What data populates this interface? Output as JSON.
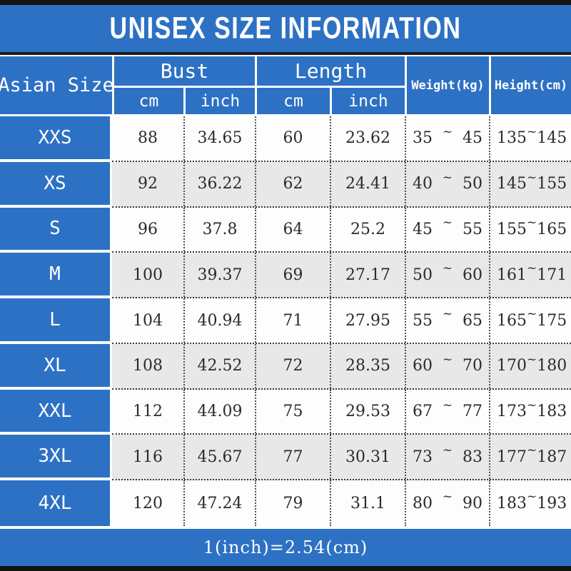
{
  "title": "UNISEX SIZE INFORMATION",
  "footer": "1(inch)=2.54(cm)",
  "colors": {
    "blue": "#2d71c4",
    "bar_black": "#141414",
    "alt_row_gray": "#e8e8e8"
  },
  "table": {
    "header": {
      "asian_size": "Asian Size",
      "bust": "Bust",
      "length": "Length",
      "weight": "Weight(kg)",
      "height": "Height(cm)",
      "cm": "cm",
      "inch": "inch"
    },
    "tilde": "~",
    "rows": [
      {
        "size": "XXS",
        "bust_cm": "88",
        "bust_inch": "34.65",
        "length_cm": "60",
        "length_inch": "23.62",
        "weight_min": "35",
        "weight_max": "45",
        "height_min": "135",
        "height_max": "145"
      },
      {
        "size": "XS",
        "bust_cm": "92",
        "bust_inch": "36.22",
        "length_cm": "62",
        "length_inch": "24.41",
        "weight_min": "40",
        "weight_max": "50",
        "height_min": "145",
        "height_max": "155"
      },
      {
        "size": "S",
        "bust_cm": "96",
        "bust_inch": "37.8",
        "length_cm": "64",
        "length_inch": "25.2",
        "weight_min": "45",
        "weight_max": "55",
        "height_min": "155",
        "height_max": "165"
      },
      {
        "size": "M",
        "bust_cm": "100",
        "bust_inch": "39.37",
        "length_cm": "69",
        "length_inch": "27.17",
        "weight_min": "50",
        "weight_max": "60",
        "height_min": "161",
        "height_max": "171"
      },
      {
        "size": "L",
        "bust_cm": "104",
        "bust_inch": "40.94",
        "length_cm": "71",
        "length_inch": "27.95",
        "weight_min": "55",
        "weight_max": "65",
        "height_min": "165",
        "height_max": "175"
      },
      {
        "size": "XL",
        "bust_cm": "108",
        "bust_inch": "42.52",
        "length_cm": "72",
        "length_inch": "28.35",
        "weight_min": "60",
        "weight_max": "70",
        "height_min": "170",
        "height_max": "180"
      },
      {
        "size": "XXL",
        "bust_cm": "112",
        "bust_inch": "44.09",
        "length_cm": "75",
        "length_inch": "29.53",
        "weight_min": "67",
        "weight_max": "77",
        "height_min": "173",
        "height_max": "183"
      },
      {
        "size": "3XL",
        "bust_cm": "116",
        "bust_inch": "45.67",
        "length_cm": "77",
        "length_inch": "30.31",
        "weight_min": "73",
        "weight_max": "83",
        "height_min": "177",
        "height_max": "187"
      },
      {
        "size": "4XL",
        "bust_cm": "120",
        "bust_inch": "47.24",
        "length_cm": "79",
        "length_inch": "31.1",
        "weight_min": "80",
        "weight_max": "90",
        "height_min": "183",
        "height_max": "193"
      }
    ]
  },
  "chart_data": {
    "type": "table",
    "title": "UNISEX SIZE INFORMATION",
    "columns": [
      "Asian Size",
      "Bust cm",
      "Bust inch",
      "Length cm",
      "Length inch",
      "Weight(kg)",
      "Height(cm)"
    ],
    "rows": [
      [
        "XXS",
        88,
        34.65,
        60,
        23.62,
        "35~45",
        "135~145"
      ],
      [
        "XS",
        92,
        36.22,
        62,
        24.41,
        "40~50",
        "145~155"
      ],
      [
        "S",
        96,
        37.8,
        64,
        25.2,
        "45~55",
        "155~165"
      ],
      [
        "M",
        100,
        39.37,
        69,
        27.17,
        "50~60",
        "161~171"
      ],
      [
        "L",
        104,
        40.94,
        71,
        27.95,
        "55~65",
        "165~175"
      ],
      [
        "XL",
        108,
        42.52,
        72,
        28.35,
        "60~70",
        "170~180"
      ],
      [
        "XXL",
        112,
        44.09,
        75,
        29.53,
        "67~77",
        "173~183"
      ],
      [
        "3XL",
        116,
        45.67,
        77,
        30.31,
        "73~83",
        "177~187"
      ],
      [
        "4XL",
        120,
        47.24,
        79,
        31.1,
        "80~90",
        "183~193"
      ]
    ],
    "footnote": "1(inch)=2.54(cm)",
    "layout_hints": {
      "alternating_row_shading": true,
      "header_background": "#2d71c4",
      "grid": "dotted"
    }
  }
}
